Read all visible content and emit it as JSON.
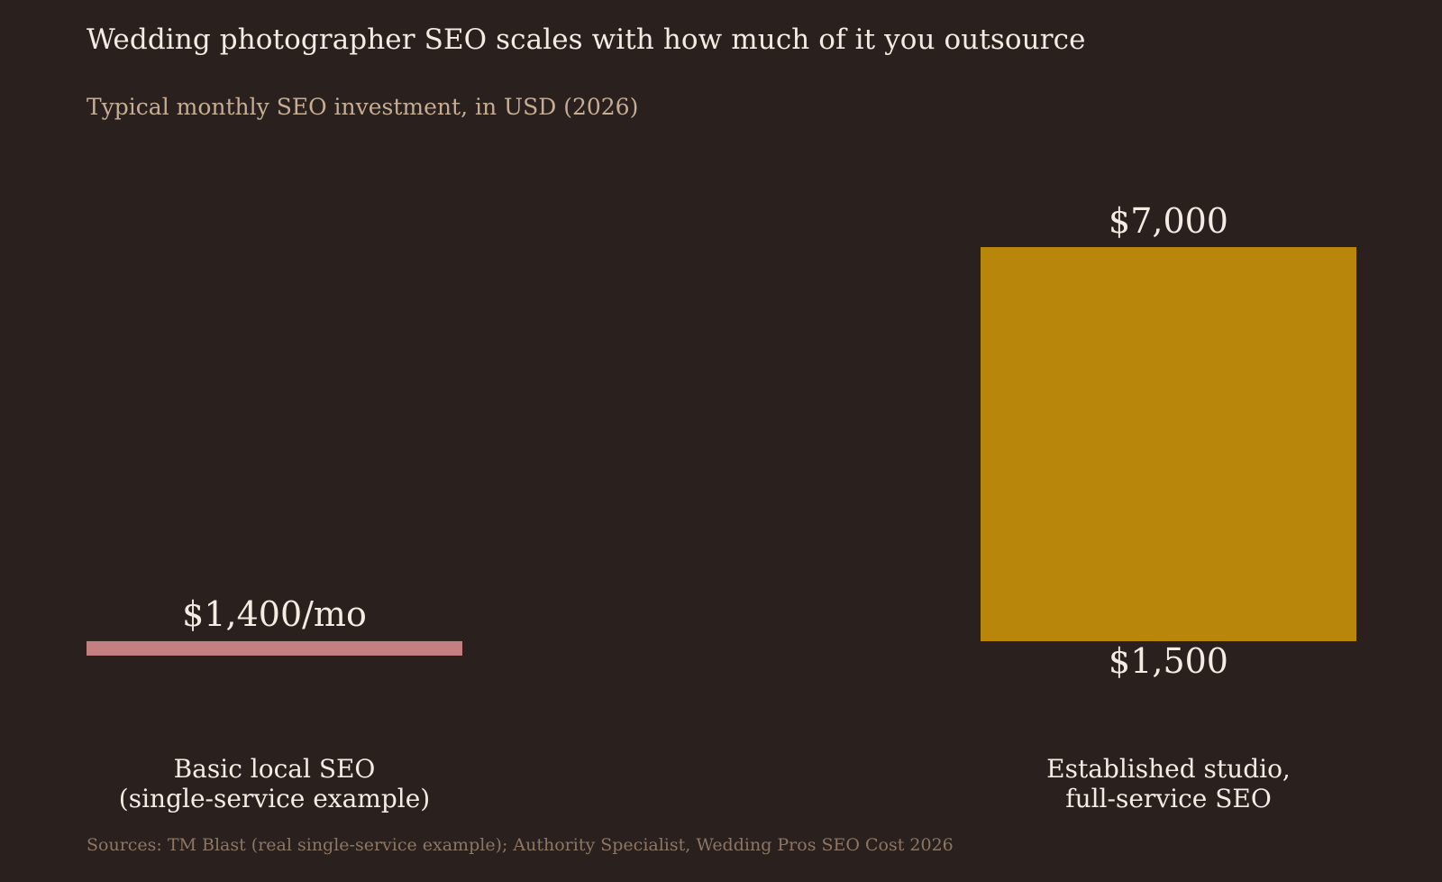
{
  "title": "Wedding photographer SEO scales with how much of it you outsource",
  "subtitle": "Typical monthly SEO investment, in USD (2026)",
  "source": "Sources: TM Blast (real single-service example); Authority Specialist, Wedding Pros SEO Cost 2026",
  "chart_data": {
    "type": "bar",
    "title": "Wedding photographer SEO scales with how much of it you outsource",
    "subtitle": "Typical monthly SEO investment, in USD (2026)",
    "unit": "USD per month",
    "grid": false,
    "legend": "none",
    "categories": [
      [
        "Basic local SEO",
        "(single-service example)"
      ],
      [
        "Established studio,",
        "full-service SEO"
      ]
    ],
    "bars": [
      {
        "kind": "point",
        "value": 1400,
        "label": "$1,400/mo",
        "color": "#c47f82"
      },
      {
        "kind": "range",
        "low": 1500,
        "high": 7000,
        "low_label": "$1,500",
        "high_label": "$7,000",
        "color": "#b8860b"
      }
    ]
  }
}
